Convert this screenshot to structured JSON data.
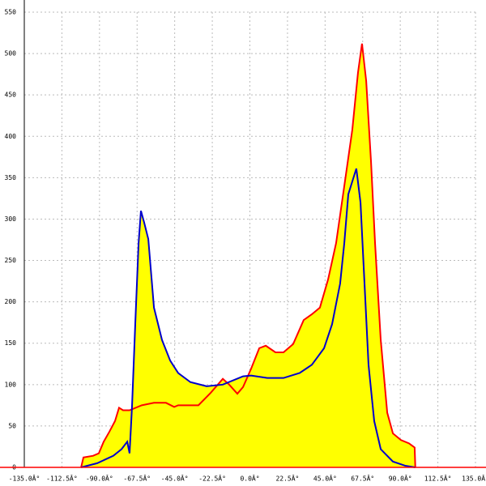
{
  "chart_data": {
    "type": "area",
    "fill": "#ffff00",
    "grid": true,
    "xlim": [
      -135,
      135
    ],
    "ylim": [
      0,
      550
    ],
    "xticks": [
      {
        "value": -135,
        "label": "-135.0Â°"
      },
      {
        "value": -112.5,
        "label": "-112.5Â°"
      },
      {
        "value": -90,
        "label": "-90.0Â°"
      },
      {
        "value": -67.5,
        "label": "-67.5Â°"
      },
      {
        "value": -45,
        "label": "-45.0Â°"
      },
      {
        "value": -22.5,
        "label": "-22.5Â°"
      },
      {
        "value": 0,
        "label": "0.0Â°"
      },
      {
        "value": 22.5,
        "label": "22.5Â°"
      },
      {
        "value": 45,
        "label": "45.0Â°"
      },
      {
        "value": 67.5,
        "label": "67.5Â°"
      },
      {
        "value": 90,
        "label": "90.0Â°"
      },
      {
        "value": 112.5,
        "label": "112.5Â°"
      },
      {
        "value": 135,
        "label": "135.0Â°"
      }
    ],
    "yticks": [
      0,
      50,
      100,
      150,
      200,
      250,
      300,
      350,
      400,
      450,
      500,
      550
    ],
    "series": [
      {
        "color": "#ff0000",
        "x": [
          -101,
          -99.6,
          -93.8,
          -90.4,
          -87.5,
          -84.1,
          -80.7,
          -78.3,
          -75.9,
          -72,
          -64.7,
          -57.4,
          -50.2,
          -45.3,
          -42.9,
          -30.8,
          -23.5,
          -16.2,
          -12.4,
          -7.5,
          -4.1,
          0.7,
          5.6,
          9.5,
          15.3,
          20.1,
          25.9,
          32.2,
          37.1,
          41.9,
          46.8,
          51.6,
          56.5,
          61.3,
          64.7,
          67.1,
          69.6,
          72.5,
          74.9,
          78.3,
          82.2,
          85.6,
          90.4,
          95.2,
          98.6,
          99
        ],
        "values": [
          0,
          12,
          14,
          17,
          31,
          43,
          56,
          72,
          69,
          69,
          75,
          78,
          78,
          73,
          75,
          75,
          90,
          107,
          100,
          89,
          97,
          119,
          144,
          147,
          139,
          139,
          149,
          178,
          185,
          193,
          227,
          271,
          340,
          408,
          477,
          512,
          467,
          369,
          271,
          154,
          66,
          41,
          33,
          29,
          24,
          0
        ]
      },
      {
        "color": "#0000cc",
        "x": [
          -101,
          -91.4,
          -81.7,
          -76.8,
          -73.4,
          -72,
          -70.5,
          -68.6,
          -66.6,
          -65.2,
          -63.3,
          -60.8,
          -57.4,
          -52.6,
          -47.7,
          -42.9,
          -35.6,
          -25.9,
          -16.2,
          -4.1,
          0.7,
          10.4,
          20.1,
          29.8,
          37.1,
          44.4,
          49.2,
          54,
          56.5,
          58.9,
          63.7,
          66.2,
          68.6,
          71,
          74.4,
          78.3,
          85.6,
          92.9,
          99
        ],
        "values": [
          0,
          5,
          14,
          22,
          31,
          17,
          75,
          173,
          271,
          310,
          296,
          276,
          193,
          154,
          129,
          114,
          103,
          98,
          100,
          110,
          111,
          108,
          108,
          114,
          124,
          144,
          173,
          222,
          271,
          330,
          361,
          320,
          222,
          124,
          56,
          22,
          7,
          2,
          0
        ]
      }
    ]
  }
}
